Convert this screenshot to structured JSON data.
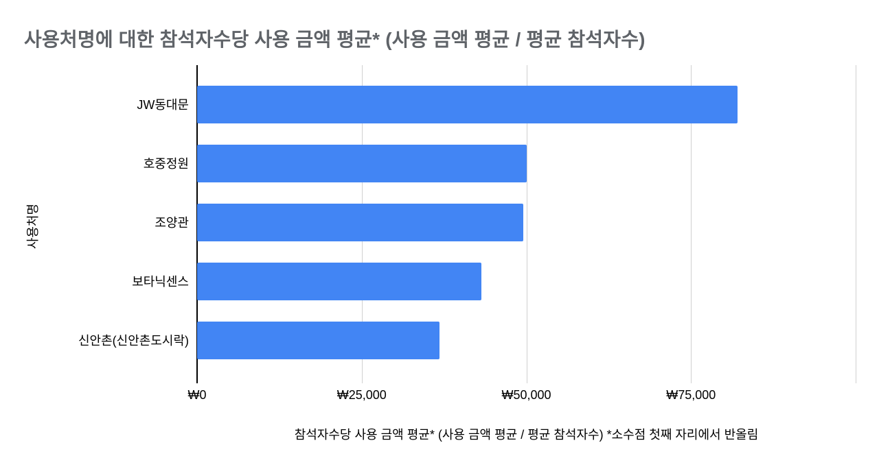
{
  "page": {
    "background": "#ffffff"
  },
  "chart_data": {
    "type": "bar",
    "orientation": "horizontal",
    "title": "사용처명에 대한 참석자수당 사용 금액 평균* (사용 금액 평균 / 평균 참석자수)",
    "xlabel": "참석자수당 사용 금액 평균* (사용 금액 평균 / 평균 참석자수) *소수점 첫째 자리에서 반올림",
    "ylabel": "사용처명",
    "categories": [
      "JW동대문",
      "호중정원",
      "조양관",
      "보타닉센스",
      "신안촌(신안촌도시락)"
    ],
    "values": [
      82100,
      50100,
      49500,
      43200,
      36800
    ],
    "currency": "KRW",
    "xlim": [
      0,
      100000
    ],
    "x_ticks": [
      {
        "value": 0,
        "label": "₩0"
      },
      {
        "value": 25000,
        "label": "₩25,000"
      },
      {
        "value": 50000,
        "label": "₩50,000"
      },
      {
        "value": 75000,
        "label": "₩75,000"
      },
      {
        "value": 100000,
        "label": ""
      }
    ],
    "grid": true,
    "legend": "none",
    "colors": {
      "bar": "#4285f4",
      "gridline": "#d0d0d0",
      "axis_line": "#000000",
      "title_text": "#5f6368",
      "label_text": "#000000"
    }
  }
}
